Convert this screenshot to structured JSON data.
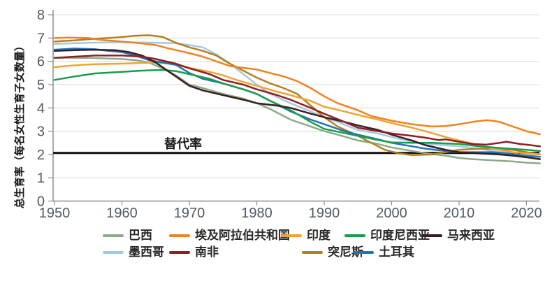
{
  "figure": {
    "y_axis_title": "总生育率（每名女性生育子女数量）",
    "background": "#ffffff",
    "grid_color": "#d8d8d8",
    "axis_color": "#8a8f94",
    "tick_label_color": "#4f5b66"
  },
  "chart_data": {
    "type": "line",
    "title": "",
    "xlabel": "",
    "ylabel": "总生育率（每名女性生育子女数量）",
    "xlim": [
      1950,
      2022
    ],
    "ylim": [
      0,
      8
    ],
    "x_ticks": [
      1950,
      1960,
      1970,
      1980,
      1990,
      2000,
      2010,
      2020
    ],
    "y_ticks": [
      0,
      1,
      2,
      3,
      4,
      5,
      6,
      7,
      8
    ],
    "grid": "horizontal",
    "legend_position": "bottom",
    "reference_line": {
      "label": "替代率",
      "value": 2.1,
      "color": "#1a1a1a"
    },
    "draw_order": [
      5,
      0,
      7,
      2,
      8,
      3,
      4,
      6,
      1
    ],
    "series": [
      {
        "id": "brazil",
        "name": "巴西",
        "color": "#8caa89",
        "points": [
          [
            1950,
            6.15
          ],
          [
            1955,
            6.15
          ],
          [
            1960,
            6.1
          ],
          [
            1962,
            6.05
          ],
          [
            1964,
            5.95
          ],
          [
            1966,
            5.7
          ],
          [
            1968,
            5.4
          ],
          [
            1970,
            5.0
          ],
          [
            1972,
            4.85
          ],
          [
            1975,
            4.6
          ],
          [
            1978,
            4.4
          ],
          [
            1980,
            4.2
          ],
          [
            1982,
            3.95
          ],
          [
            1985,
            3.5
          ],
          [
            1988,
            3.2
          ],
          [
            1990,
            3.0
          ],
          [
            1992,
            2.85
          ],
          [
            1995,
            2.6
          ],
          [
            1998,
            2.45
          ],
          [
            2000,
            2.3
          ],
          [
            2002,
            2.2
          ],
          [
            2005,
            2.05
          ],
          [
            2008,
            1.95
          ],
          [
            2010,
            1.85
          ],
          [
            2012,
            1.8
          ],
          [
            2015,
            1.75
          ],
          [
            2018,
            1.7
          ],
          [
            2020,
            1.65
          ],
          [
            2022,
            1.62
          ]
        ]
      },
      {
        "id": "egypt",
        "name": "埃及阿拉伯共和国",
        "color": "#f08222",
        "points": [
          [
            1950,
            7.0
          ],
          [
            1952,
            7.02
          ],
          [
            1955,
            7.0
          ],
          [
            1957,
            6.92
          ],
          [
            1960,
            6.85
          ],
          [
            1962,
            6.8
          ],
          [
            1965,
            6.7
          ],
          [
            1967,
            6.55
          ],
          [
            1970,
            6.35
          ],
          [
            1972,
            6.2
          ],
          [
            1974,
            6.0
          ],
          [
            1976,
            5.8
          ],
          [
            1978,
            5.72
          ],
          [
            1980,
            5.65
          ],
          [
            1982,
            5.5
          ],
          [
            1984,
            5.35
          ],
          [
            1986,
            5.15
          ],
          [
            1988,
            4.85
          ],
          [
            1990,
            4.5
          ],
          [
            1992,
            4.2
          ],
          [
            1995,
            3.9
          ],
          [
            1997,
            3.65
          ],
          [
            2000,
            3.45
          ],
          [
            2003,
            3.3
          ],
          [
            2006,
            3.2
          ],
          [
            2008,
            3.22
          ],
          [
            2010,
            3.3
          ],
          [
            2012,
            3.4
          ],
          [
            2014,
            3.47
          ],
          [
            2015,
            3.45
          ],
          [
            2016,
            3.4
          ],
          [
            2018,
            3.2
          ],
          [
            2020,
            3.0
          ],
          [
            2022,
            2.87
          ]
        ]
      },
      {
        "id": "india",
        "name": "印度",
        "color": "#f0a433",
        "points": [
          [
            1950,
            5.75
          ],
          [
            1953,
            5.83
          ],
          [
            1956,
            5.88
          ],
          [
            1960,
            5.9
          ],
          [
            1963,
            5.93
          ],
          [
            1965,
            5.95
          ],
          [
            1967,
            5.9
          ],
          [
            1970,
            5.72
          ],
          [
            1973,
            5.55
          ],
          [
            1975,
            5.4
          ],
          [
            1977,
            5.2
          ],
          [
            1980,
            4.95
          ],
          [
            1983,
            4.7
          ],
          [
            1985,
            4.55
          ],
          [
            1988,
            4.3
          ],
          [
            1990,
            4.05
          ],
          [
            1993,
            3.85
          ],
          [
            1995,
            3.7
          ],
          [
            1998,
            3.5
          ],
          [
            2000,
            3.35
          ],
          [
            2003,
            3.15
          ],
          [
            2005,
            3.0
          ],
          [
            2008,
            2.75
          ],
          [
            2010,
            2.6
          ],
          [
            2013,
            2.4
          ],
          [
            2015,
            2.25
          ],
          [
            2018,
            2.1
          ],
          [
            2020,
            2.05
          ],
          [
            2022,
            2.0
          ]
        ]
      },
      {
        "id": "indonesia",
        "name": "印度尼西亚",
        "color": "#189d4a",
        "points": [
          [
            1950,
            5.2
          ],
          [
            1953,
            5.35
          ],
          [
            1956,
            5.48
          ],
          [
            1960,
            5.55
          ],
          [
            1963,
            5.6
          ],
          [
            1966,
            5.63
          ],
          [
            1968,
            5.58
          ],
          [
            1970,
            5.45
          ],
          [
            1973,
            5.25
          ],
          [
            1975,
            5.05
          ],
          [
            1978,
            4.8
          ],
          [
            1980,
            4.6
          ],
          [
            1982,
            4.3
          ],
          [
            1985,
            3.9
          ],
          [
            1988,
            3.4
          ],
          [
            1990,
            3.1
          ],
          [
            1993,
            2.92
          ],
          [
            1995,
            2.8
          ],
          [
            1998,
            2.62
          ],
          [
            2000,
            2.52
          ],
          [
            2003,
            2.5
          ],
          [
            2006,
            2.5
          ],
          [
            2010,
            2.45
          ],
          [
            2013,
            2.35
          ],
          [
            2016,
            2.28
          ],
          [
            2020,
            2.2
          ],
          [
            2022,
            2.15
          ]
        ]
      },
      {
        "id": "malaysia",
        "name": "马来西亚",
        "color": "#381f1f",
        "points": [
          [
            1950,
            6.45
          ],
          [
            1953,
            6.48
          ],
          [
            1956,
            6.5
          ],
          [
            1959,
            6.48
          ],
          [
            1961,
            6.4
          ],
          [
            1963,
            6.25
          ],
          [
            1965,
            5.95
          ],
          [
            1967,
            5.55
          ],
          [
            1970,
            4.95
          ],
          [
            1972,
            4.75
          ],
          [
            1975,
            4.55
          ],
          [
            1978,
            4.35
          ],
          [
            1980,
            4.2
          ],
          [
            1983,
            4.1
          ],
          [
            1985,
            4.0
          ],
          [
            1988,
            3.75
          ],
          [
            1990,
            3.6
          ],
          [
            1993,
            3.4
          ],
          [
            1995,
            3.25
          ],
          [
            1998,
            3.05
          ],
          [
            2000,
            2.85
          ],
          [
            2003,
            2.6
          ],
          [
            2005,
            2.4
          ],
          [
            2008,
            2.2
          ],
          [
            2010,
            2.1
          ],
          [
            2013,
            2.05
          ],
          [
            2016,
            2.0
          ],
          [
            2018,
            1.95
          ],
          [
            2020,
            1.88
          ],
          [
            2022,
            1.8
          ]
        ]
      },
      {
        "id": "mexico",
        "name": "墨西哥",
        "color": "#a6c9e2",
        "points": [
          [
            1950,
            6.75
          ],
          [
            1955,
            6.8
          ],
          [
            1960,
            6.82
          ],
          [
            1965,
            6.8
          ],
          [
            1968,
            6.78
          ],
          [
            1970,
            6.7
          ],
          [
            1972,
            6.6
          ],
          [
            1974,
            6.3
          ],
          [
            1976,
            5.9
          ],
          [
            1978,
            5.45
          ],
          [
            1980,
            5.0
          ],
          [
            1982,
            4.6
          ],
          [
            1985,
            4.2
          ],
          [
            1988,
            3.85
          ],
          [
            1990,
            3.6
          ],
          [
            1992,
            3.4
          ],
          [
            1995,
            3.05
          ],
          [
            1998,
            2.9
          ],
          [
            2000,
            2.75
          ],
          [
            2003,
            2.55
          ],
          [
            2005,
            2.45
          ],
          [
            2008,
            2.4
          ],
          [
            2010,
            2.35
          ],
          [
            2013,
            2.25
          ],
          [
            2015,
            2.15
          ],
          [
            2018,
            2.05
          ],
          [
            2020,
            1.9
          ],
          [
            2022,
            1.8
          ]
        ]
      },
      {
        "id": "south-africa",
        "name": "南非",
        "color": "#8e1f24",
        "points": [
          [
            1950,
            6.15
          ],
          [
            1953,
            6.2
          ],
          [
            1956,
            6.25
          ],
          [
            1960,
            6.25
          ],
          [
            1963,
            6.2
          ],
          [
            1965,
            6.1
          ],
          [
            1968,
            5.9
          ],
          [
            1970,
            5.7
          ],
          [
            1973,
            5.45
          ],
          [
            1975,
            5.2
          ],
          [
            1978,
            5.0
          ],
          [
            1980,
            4.8
          ],
          [
            1983,
            4.55
          ],
          [
            1985,
            4.35
          ],
          [
            1988,
            4.0
          ],
          [
            1990,
            3.75
          ],
          [
            1993,
            3.4
          ],
          [
            1995,
            3.15
          ],
          [
            1998,
            3.0
          ],
          [
            2000,
            2.9
          ],
          [
            2003,
            2.8
          ],
          [
            2005,
            2.72
          ],
          [
            2007,
            2.62
          ],
          [
            2008,
            2.65
          ],
          [
            2010,
            2.55
          ],
          [
            2012,
            2.45
          ],
          [
            2014,
            2.42
          ],
          [
            2016,
            2.5
          ],
          [
            2017,
            2.55
          ],
          [
            2019,
            2.45
          ],
          [
            2020,
            2.42
          ],
          [
            2022,
            2.35
          ]
        ]
      },
      {
        "id": "tunisia",
        "name": "突尼斯",
        "color": "#b28121",
        "points": [
          [
            1950,
            6.85
          ],
          [
            1953,
            6.9
          ],
          [
            1956,
            6.97
          ],
          [
            1959,
            7.02
          ],
          [
            1962,
            7.1
          ],
          [
            1964,
            7.12
          ],
          [
            1966,
            7.05
          ],
          [
            1968,
            6.8
          ],
          [
            1970,
            6.6
          ],
          [
            1972,
            6.45
          ],
          [
            1974,
            6.25
          ],
          [
            1976,
            5.9
          ],
          [
            1978,
            5.6
          ],
          [
            1980,
            5.3
          ],
          [
            1982,
            5.05
          ],
          [
            1984,
            4.85
          ],
          [
            1986,
            4.6
          ],
          [
            1988,
            4.1
          ],
          [
            1990,
            3.6
          ],
          [
            1992,
            3.2
          ],
          [
            1995,
            2.8
          ],
          [
            1997,
            2.5
          ],
          [
            1999,
            2.2
          ],
          [
            2001,
            2.05
          ],
          [
            2003,
            1.97
          ],
          [
            2006,
            2.0
          ],
          [
            2008,
            2.1
          ],
          [
            2010,
            2.2
          ],
          [
            2013,
            2.25
          ],
          [
            2015,
            2.25
          ],
          [
            2018,
            2.2
          ],
          [
            2020,
            2.1
          ],
          [
            2022,
            2.0
          ]
        ]
      },
      {
        "id": "turkey",
        "name": "土耳其",
        "color": "#2173b8",
        "points": [
          [
            1950,
            6.5
          ],
          [
            1953,
            6.55
          ],
          [
            1956,
            6.52
          ],
          [
            1958,
            6.45
          ],
          [
            1960,
            6.4
          ],
          [
            1962,
            6.25
          ],
          [
            1964,
            6.05
          ],
          [
            1966,
            5.95
          ],
          [
            1968,
            5.85
          ],
          [
            1970,
            5.5
          ],
          [
            1972,
            5.25
          ],
          [
            1975,
            5.05
          ],
          [
            1978,
            4.8
          ],
          [
            1980,
            4.6
          ],
          [
            1982,
            4.3
          ],
          [
            1985,
            3.85
          ],
          [
            1988,
            3.5
          ],
          [
            1990,
            3.3
          ],
          [
            1993,
            3.0
          ],
          [
            1995,
            2.85
          ],
          [
            1998,
            2.65
          ],
          [
            2000,
            2.5
          ],
          [
            2003,
            2.35
          ],
          [
            2005,
            2.25
          ],
          [
            2008,
            2.15
          ],
          [
            2010,
            2.1
          ],
          [
            2013,
            2.1
          ],
          [
            2015,
            2.1
          ],
          [
            2017,
            2.05
          ],
          [
            2020,
            1.95
          ],
          [
            2022,
            1.9
          ]
        ]
      }
    ]
  }
}
